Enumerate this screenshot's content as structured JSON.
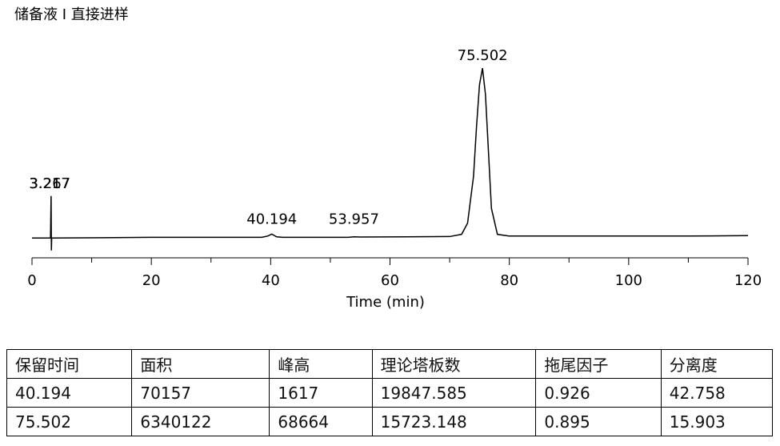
{
  "chart_data": {
    "type": "chromatogram",
    "title": "储备液 I 直接进样",
    "xlabel": "Time (min)",
    "xlim": [
      0,
      120
    ],
    "xticks": [
      0,
      20,
      40,
      60,
      80,
      100,
      120
    ],
    "xminorticks": [
      10,
      30,
      50,
      70,
      90,
      110
    ],
    "ylim": [
      -8000,
      70000
    ],
    "color": "#000000",
    "x": [
      0,
      3.1,
      3.2,
      3.25,
      3.3,
      3.4,
      20,
      38.5,
      39.5,
      40.194,
      41,
      42,
      53,
      53.957,
      55,
      70,
      72,
      73,
      74,
      74.5,
      75,
      75.502,
      76,
      76.5,
      77,
      78,
      80,
      100,
      110,
      120
    ],
    "values": [
      0,
      0,
      17000,
      -5000,
      0,
      0,
      300,
      300,
      800,
      1617,
      500,
      300,
      300,
      500,
      400,
      600,
      1500,
      6000,
      25000,
      45000,
      62000,
      68664,
      58000,
      35000,
      12000,
      1500,
      800,
      800,
      800,
      1000
    ],
    "peaks": [
      3.217,
      3.267,
      40.194,
      53.957,
      75.502
    ]
  },
  "table": {
    "columns": [
      "保留时间",
      "面积",
      "峰高",
      "理论塔板数",
      "拖尾因子",
      "分离度"
    ],
    "rows": [
      [
        40.194,
        70157,
        1617,
        19847.585,
        0.926,
        42.758
      ],
      [
        75.502,
        6340122,
        68664,
        15723.148,
        0.895,
        15.903
      ]
    ]
  }
}
